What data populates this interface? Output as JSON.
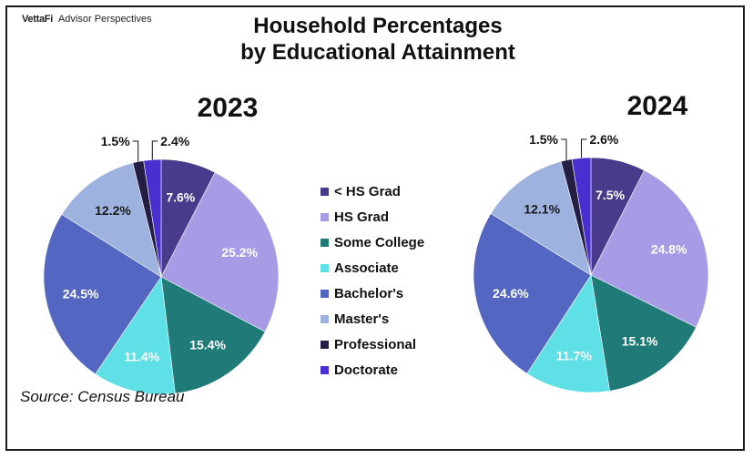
{
  "brand": {
    "name": "VettaFi",
    "sub": "Advisor Perspectives"
  },
  "title_line1": "Household Percentages",
  "title_line2": "by Educational Attainment",
  "source": "Source: Census Bureau",
  "colors": [
    "#4a3a8c",
    "#a89be6",
    "#1f7a78",
    "#5ee0e6",
    "#5366c2",
    "#9eb2e0",
    "#241d44",
    "#4a2fd0"
  ],
  "chart_data": {
    "type": "pie",
    "categories": [
      "< HS Grad",
      "HS Grad",
      "Some College",
      "Associate",
      "Bachelor's",
      "Master's",
      "Professional",
      "Doctorate"
    ],
    "pies": [
      {
        "title": "2023",
        "values": [
          7.6,
          25.2,
          15.4,
          11.4,
          24.5,
          12.2,
          1.5,
          2.4
        ],
        "labels": [
          "7.6%",
          "25.2%",
          "15.4%",
          "11.4%",
          "24.5%",
          "12.2%",
          "1.5%",
          "2.4%"
        ]
      },
      {
        "title": "2024",
        "values": [
          7.5,
          24.8,
          15.1,
          11.7,
          24.6,
          12.1,
          1.5,
          2.6
        ],
        "labels": [
          "7.5%",
          "24.8%",
          "15.1%",
          "11.7%",
          "24.6%",
          "12.1%",
          "1.5%",
          "2.6%"
        ]
      }
    ],
    "legend_position": "center"
  }
}
